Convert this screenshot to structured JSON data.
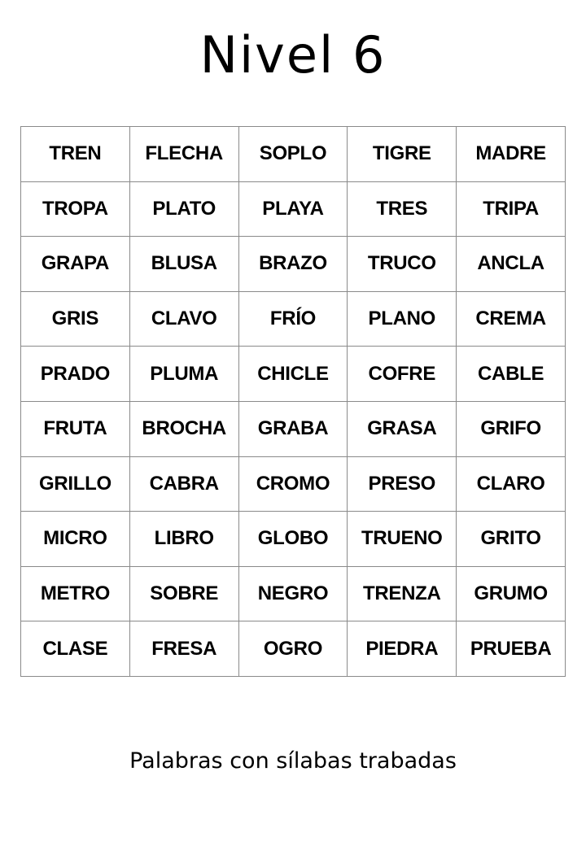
{
  "title": "Nivel 6",
  "rows": [
    [
      "TREN",
      "FLECHA",
      "SOPLO",
      "TIGRE",
      "MADRE"
    ],
    [
      "TROPA",
      "PLATO",
      "PLAYA",
      "TRES",
      "TRIPA"
    ],
    [
      "GRAPA",
      "BLUSA",
      "BRAZO",
      "TRUCO",
      "ANCLA"
    ],
    [
      "GRIS",
      "CLAVO",
      "FRÍO",
      "PLANO",
      "CREMA"
    ],
    [
      "PRADO",
      "PLUMA",
      "CHICLE",
      "COFRE",
      "CABLE"
    ],
    [
      "FRUTA",
      "BROCHA",
      "GRABA",
      "GRASA",
      "GRIFO"
    ],
    [
      "GRILLO",
      "CABRA",
      "CROMO",
      "PRESO",
      "CLARO"
    ],
    [
      "MICRO",
      "LIBRO",
      "GLOBO",
      "TRUENO",
      "GRITO"
    ],
    [
      "METRO",
      "SOBRE",
      "NEGRO",
      "TRENZA",
      "GRUMO"
    ],
    [
      "CLASE",
      "FRESA",
      "OGRO",
      "PIEDRA",
      "PRUEBA"
    ]
  ],
  "footer": "Palabras con sílabas trabadas"
}
